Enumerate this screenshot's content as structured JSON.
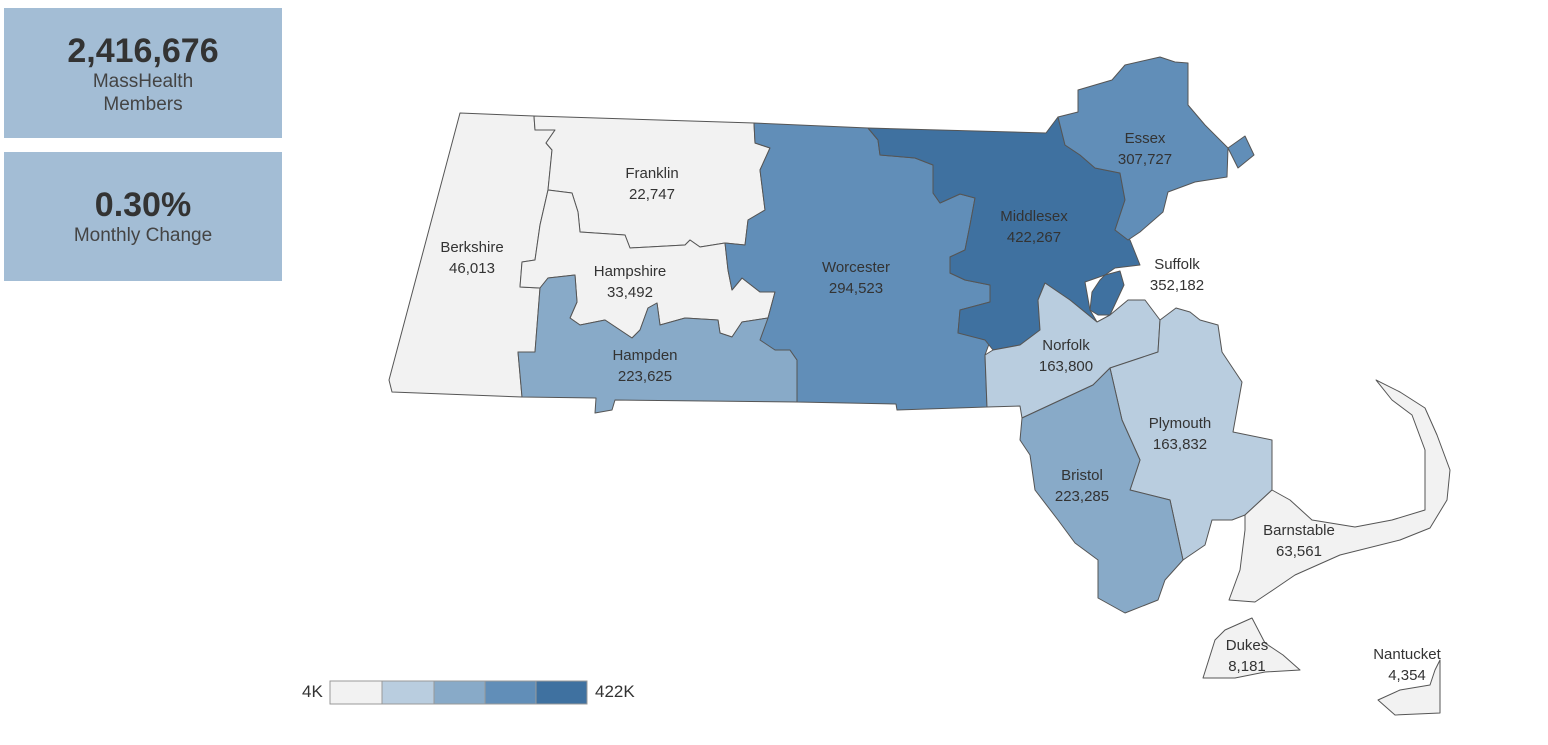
{
  "kpis": {
    "members": {
      "value": "2,416,676",
      "label_line1": "MassHealth",
      "label_line2": "Members"
    },
    "change": {
      "value": "0.30%",
      "label": "Monthly Change"
    }
  },
  "legend": {
    "min_label": "4K",
    "max_label": "422K",
    "colors": [
      "#f2f2f2",
      "#b9cddf",
      "#88aac8",
      "#618eb8",
      "#3f71a0"
    ]
  },
  "counties": {
    "berkshire": {
      "name": "Berkshire",
      "value": "46,013",
      "color": "#f2f2f2"
    },
    "franklin": {
      "name": "Franklin",
      "value": "22,747",
      "color": "#f2f2f2"
    },
    "hampshire": {
      "name": "Hampshire",
      "value": "33,492",
      "color": "#f2f2f2"
    },
    "hampden": {
      "name": "Hampden",
      "value": "223,625",
      "color": "#88aac8"
    },
    "worcester": {
      "name": "Worcester",
      "value": "294,523",
      "color": "#618eb8"
    },
    "middlesex": {
      "name": "Middlesex",
      "value": "422,267",
      "color": "#3f71a0"
    },
    "essex": {
      "name": "Essex",
      "value": "307,727",
      "color": "#618eb8"
    },
    "suffolk": {
      "name": "Suffolk",
      "value": "352,182",
      "color": "#3f71a0"
    },
    "norfolk": {
      "name": "Norfolk",
      "value": "163,800",
      "color": "#b9cddf"
    },
    "bristol": {
      "name": "Bristol",
      "value": "223,285",
      "color": "#88aac8"
    },
    "plymouth": {
      "name": "Plymouth",
      "value": "163,832",
      "color": "#b9cddf"
    },
    "barnstable": {
      "name": "Barnstable",
      "value": "63,561",
      "color": "#f2f2f2"
    },
    "dukes": {
      "name": "Dukes",
      "value": "8,181",
      "color": "#f2f2f2"
    },
    "nantucket": {
      "name": "Nantucket",
      "value": "4,354",
      "color": "#f2f2f2"
    }
  }
}
